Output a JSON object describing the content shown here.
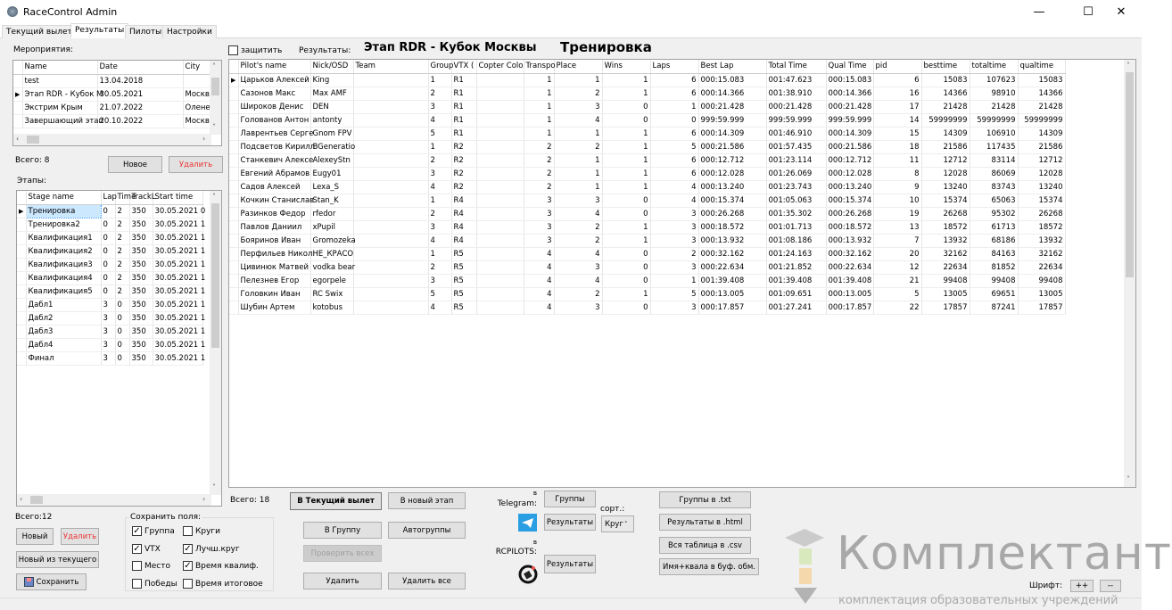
{
  "window": {
    "title": "RaceControl Admin",
    "minimize": "—",
    "maximize": "☐",
    "close": "✕"
  },
  "tabs": [
    "Текущий вылет",
    "Результаты",
    "Пилоты",
    "Настройки"
  ],
  "active_tab": "Результаты",
  "events": {
    "label": "Мероприятия:",
    "columns": [
      "Name",
      "Date",
      "City"
    ],
    "rows": [
      [
        "test",
        "13.04.2018",
        ""
      ],
      [
        "Этап RDR - Кубок М",
        "30.05.2021",
        "Москв"
      ],
      [
        "Экстрим Крым",
        "21.07.2022",
        "Олене"
      ],
      [
        "Завершающий этап",
        "20.10.2022",
        "Москв"
      ]
    ],
    "selected_row": 1,
    "total": "Всего:  8",
    "new_label": "Новое",
    "delete_label": "Удалить"
  },
  "stages": {
    "label": "Этапы:",
    "columns": [
      "Stage name",
      "Lap",
      "Time",
      "TrackL",
      "Start time"
    ],
    "rows": [
      [
        "Тренировка",
        "0",
        "2",
        "350",
        "30.05.2021 0"
      ],
      [
        "Тренировка2",
        "0",
        "2",
        "350",
        "30.05.2021 1"
      ],
      [
        "Квалификация1",
        "0",
        "2",
        "350",
        "30.05.2021 1"
      ],
      [
        "Квалификация2",
        "0",
        "2",
        "350",
        "30.05.2021 1"
      ],
      [
        "Квалификация3",
        "0",
        "2",
        "350",
        "30.05.2021 1"
      ],
      [
        "Квалификация4",
        "0",
        "2",
        "350",
        "30.05.2021 1"
      ],
      [
        "Квалификация5",
        "0",
        "2",
        "350",
        "30.05.2021 1"
      ],
      [
        "Дабл1",
        "3",
        "0",
        "350",
        "30.05.2021 1"
      ],
      [
        "Дабл2",
        "3",
        "0",
        "350",
        "30.05.2021 1"
      ],
      [
        "Дабл3",
        "3",
        "0",
        "350",
        "30.05.2021 1"
      ],
      [
        "Дабл4",
        "3",
        "0",
        "350",
        "30.05.2021 1"
      ],
      [
        "Финал",
        "3",
        "0",
        "350",
        "30.05.2021 1"
      ]
    ],
    "selected_row": 0,
    "total": "Всего:12",
    "new_label": "Новый",
    "delete_label": "Удалить",
    "new_from_current_label": "Новый из текущего",
    "save_label": "Сохранить"
  },
  "save_fields": {
    "label": "Сохранить поля:",
    "items": [
      {
        "label": "Группа",
        "checked": true
      },
      {
        "label": "Круги",
        "checked": false
      },
      {
        "label": "VTX",
        "checked": true
      },
      {
        "label": "Лучш.круг",
        "checked": true
      },
      {
        "label": "Место",
        "checked": false
      },
      {
        "label": "Время квалиф.",
        "checked": true
      },
      {
        "label": "Победы",
        "checked": false
      },
      {
        "label": "Время итоговое",
        "checked": false
      }
    ]
  },
  "results": {
    "protect_label": "защитить",
    "protect_checked": false,
    "results_label": "Результаты:",
    "event_title": "Этап RDR - Кубок Москвы",
    "stage_title": "Тренировка",
    "columns": [
      "Pilot's name",
      "Nick/OSD",
      "Team",
      "Group",
      "VTX (",
      "Copter Colo",
      "Transpo",
      "Place",
      "Wins",
      "Laps",
      "Best Lap",
      "Total Time",
      "Qual Time",
      "pid",
      "besttime",
      "totaltime",
      "qualtime"
    ],
    "rows": [
      [
        "Царьков Алексей",
        "King",
        "",
        "1",
        "R1",
        "",
        "1",
        "1",
        "1",
        "6",
        "000:15.083",
        "001:47.623",
        "000:15.083",
        "6",
        "15083",
        "107623",
        "15083"
      ],
      [
        "Сазонов Макс",
        "Max AMF",
        "",
        "2",
        "R1",
        "",
        "1",
        "2",
        "1",
        "6",
        "000:14.366",
        "001:38.910",
        "000:14.366",
        "16",
        "14366",
        "98910",
        "14366"
      ],
      [
        "Широков Денис",
        "DEN",
        "",
        "3",
        "R1",
        "",
        "1",
        "3",
        "0",
        "1",
        "000:21.428",
        "000:21.428",
        "000:21.428",
        "17",
        "21428",
        "21428",
        "21428"
      ],
      [
        "Голованов Антон",
        "antonty",
        "",
        "4",
        "R1",
        "",
        "1",
        "4",
        "0",
        "0",
        "999:59.999",
        "999:59.999",
        "999:59.999",
        "14",
        "59999999",
        "59999999",
        "59999999"
      ],
      [
        "Лаврентьев Серге",
        "Gnom FPV",
        "",
        "5",
        "R1",
        "",
        "1",
        "1",
        "1",
        "6",
        "000:14.309",
        "001:46.910",
        "000:14.309",
        "15",
        "14309",
        "106910",
        "14309"
      ],
      [
        "Подсветов Кирилл",
        "BGeneratio",
        "",
        "1",
        "R2",
        "",
        "2",
        "2",
        "1",
        "5",
        "000:21.586",
        "001:57.435",
        "000:21.586",
        "18",
        "21586",
        "117435",
        "21586"
      ],
      [
        "Станкевич Алексе",
        "AlexeyStn",
        "",
        "2",
        "R2",
        "",
        "2",
        "1",
        "1",
        "6",
        "000:12.712",
        "001:23.114",
        "000:12.712",
        "11",
        "12712",
        "83114",
        "12712"
      ],
      [
        "Евгений Абрамов",
        "Eugy01",
        "",
        "3",
        "R2",
        "",
        "2",
        "1",
        "1",
        "6",
        "000:12.028",
        "001:26.069",
        "000:12.028",
        "8",
        "12028",
        "86069",
        "12028"
      ],
      [
        "Садов Алексей",
        "Lexa_S",
        "",
        "4",
        "R2",
        "",
        "2",
        "1",
        "1",
        "4",
        "000:13.240",
        "001:23.743",
        "000:13.240",
        "9",
        "13240",
        "83743",
        "13240"
      ],
      [
        "Кочкин Станислав",
        "Stan_K",
        "",
        "1",
        "R4",
        "",
        "3",
        "3",
        "0",
        "4",
        "000:15.374",
        "001:05.063",
        "000:15.374",
        "10",
        "15374",
        "65063",
        "15374"
      ],
      [
        "Разинков Федор",
        "rfedor",
        "",
        "2",
        "R4",
        "",
        "3",
        "4",
        "0",
        "3",
        "000:26.268",
        "001:35.302",
        "000:26.268",
        "19",
        "26268",
        "95302",
        "26268"
      ],
      [
        "Павлов Даниил",
        "xPupil",
        "",
        "3",
        "R4",
        "",
        "3",
        "2",
        "1",
        "3",
        "000:18.572",
        "001:01.713",
        "000:18.572",
        "13",
        "18572",
        "61713",
        "18572"
      ],
      [
        "Бояринов Иван",
        "Gromozeka",
        "",
        "4",
        "R4",
        "",
        "3",
        "2",
        "1",
        "3",
        "000:13.932",
        "001:08.186",
        "000:13.932",
        "7",
        "13932",
        "68186",
        "13932"
      ],
      [
        "Перфильев Никол",
        "НЕ_КРАСО",
        "",
        "1",
        "R5",
        "",
        "4",
        "4",
        "0",
        "2",
        "000:32.162",
        "001:24.163",
        "000:32.162",
        "20",
        "32162",
        "84163",
        "32162"
      ],
      [
        "Цивинюк Матвей",
        "vodka bear",
        "",
        "2",
        "R5",
        "",
        "4",
        "3",
        "0",
        "3",
        "000:22.634",
        "001:21.852",
        "000:22.634",
        "12",
        "22634",
        "81852",
        "22634"
      ],
      [
        "Пелезнев Егор",
        "egorpele",
        "",
        "3",
        "R5",
        "",
        "4",
        "4",
        "0",
        "1",
        "001:39.408",
        "001:39.408",
        "001:39.408",
        "21",
        "99408",
        "99408",
        "99408"
      ],
      [
        "Головкин Иван",
        "RC Swix",
        "",
        "5",
        "R5",
        "",
        "4",
        "2",
        "1",
        "5",
        "000:13.005",
        "001:09.651",
        "000:13.005",
        "5",
        "13005",
        "69651",
        "13005"
      ],
      [
        "Шубин Артем",
        "kotobus",
        "",
        "4",
        "R5",
        "",
        "4",
        "3",
        "0",
        "3",
        "000:17.857",
        "001:27.241",
        "000:17.857",
        "22",
        "17857",
        "87241",
        "17857"
      ]
    ],
    "selected_row": 0,
    "total": "Всего: 18"
  },
  "actions": {
    "to_current": "В Текущий вылет",
    "to_new_stage": "В новый этап",
    "to_group": "В Группу",
    "autogroups": "Автогруппы",
    "check_all": "Проверить всех",
    "delete": "Удалить",
    "delete_all": "Удалить все"
  },
  "telegram": {
    "label_top": "в",
    "label": "Telegram:",
    "groups": "Группы",
    "results": "Результаты",
    "sort_label": "сорт.:",
    "sort_value": "Круг"
  },
  "rcpilots": {
    "label_top": "в",
    "label": "RCPILOTS:",
    "results": "Результаты"
  },
  "export": {
    "groups_txt": "Группы в .txt",
    "results_html": "Результаты в .html",
    "table_csv": "Вся таблица в .csv",
    "name_qual": "Имя+квала в буф. обм."
  },
  "font": {
    "label": "Шрифт:",
    "plus": "++",
    "minus": "--"
  },
  "watermark": {
    "brand": "Комплектант",
    "tagline": "комплектация образовательных учреждений"
  }
}
